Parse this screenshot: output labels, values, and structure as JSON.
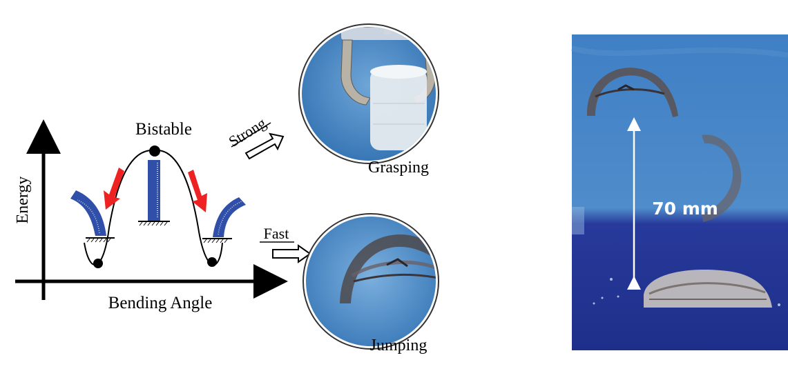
{
  "diagram": {
    "axis_y_label": "Energy",
    "axis_x_label": "Bending Angle",
    "peak_label": "Bistable"
  },
  "arrows": {
    "strong_label": "Strong",
    "fast_label": "Fast"
  },
  "photos": {
    "grasping_label": "Grasping",
    "jumping_label": "Jumping",
    "height_label": "70 mm"
  },
  "colors": {
    "beam_blue": "#2f4fa8",
    "push_red": "#ee2222",
    "photo_blue": "#4a86c4",
    "floor_blue": "#2b3a9a"
  }
}
